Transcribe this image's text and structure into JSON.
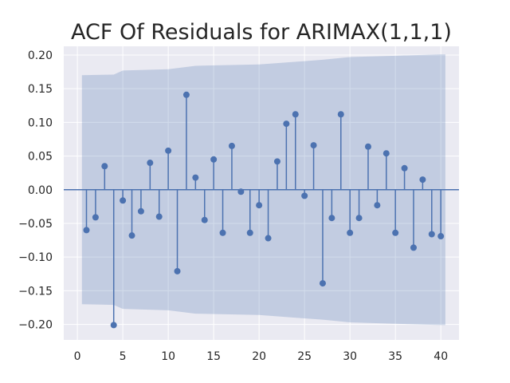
{
  "chart_data": {
    "type": "stem",
    "title": "ACF Of Residuals for ARIMAX(1,1,1)",
    "xlabel": "",
    "ylabel": "",
    "xlim": [
      -1.5,
      42.0
    ],
    "ylim": [
      -0.223,
      0.213
    ],
    "x_ticks": [
      "0",
      "5",
      "10",
      "15",
      "20",
      "25",
      "30",
      "35",
      "40"
    ],
    "y_ticks": [
      "−0.20",
      "−0.15",
      "−0.10",
      "−0.05",
      "0.00",
      "0.05",
      "0.10",
      "0.15",
      "0.20"
    ],
    "x_tick_values": [
      0,
      5,
      10,
      15,
      20,
      25,
      30,
      35,
      40
    ],
    "y_tick_values": [
      -0.2,
      -0.15,
      -0.1,
      -0.05,
      0.0,
      0.05,
      0.1,
      0.15,
      0.2
    ],
    "lags": [
      1,
      2,
      3,
      4,
      5,
      6,
      7,
      8,
      9,
      10,
      11,
      12,
      13,
      14,
      15,
      16,
      17,
      18,
      19,
      20,
      21,
      22,
      23,
      24,
      25,
      26,
      27,
      28,
      29,
      30,
      31,
      32,
      33,
      34,
      35,
      36,
      37,
      38,
      39,
      40
    ],
    "values": [
      -0.06,
      -0.041,
      0.035,
      -0.201,
      -0.016,
      -0.068,
      -0.032,
      0.04,
      -0.04,
      0.058,
      -0.121,
      0.141,
      0.018,
      -0.045,
      0.045,
      -0.064,
      0.065,
      -0.003,
      -0.064,
      -0.023,
      -0.072,
      0.042,
      0.098,
      0.112,
      -0.009,
      0.066,
      -0.139,
      -0.042,
      0.112,
      -0.064,
      -0.042,
      0.064,
      -0.023,
      0.054,
      -0.064,
      0.032,
      -0.086,
      0.015,
      -0.066,
      -0.069
    ],
    "confidence_band": {
      "x": [
        0.5,
        4,
        5,
        10,
        13,
        20,
        25,
        27,
        30,
        35,
        40,
        40.5
      ],
      "upper": [
        0.17,
        0.171,
        0.177,
        0.179,
        0.184,
        0.186,
        0.191,
        0.193,
        0.197,
        0.199,
        0.201,
        0.201
      ],
      "lower": [
        -0.17,
        -0.171,
        -0.177,
        -0.179,
        -0.184,
        -0.186,
        -0.191,
        -0.193,
        -0.197,
        -0.199,
        -0.201,
        -0.201
      ]
    },
    "grid": true,
    "colors": {
      "background": "#eaeaf2",
      "grid": "#ffffff",
      "stem": "#4c72b0",
      "band": "#4c72b0",
      "text": "#262626"
    }
  }
}
